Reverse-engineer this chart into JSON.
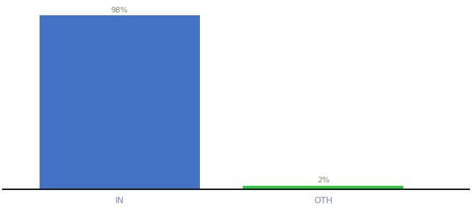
{
  "categories": [
    "IN",
    "OTH"
  ],
  "values": [
    98,
    2
  ],
  "bar_colors": [
    "#4472c4",
    "#2ecc40"
  ],
  "label_color": "#888866",
  "label_texts": [
    "98%",
    "2%"
  ],
  "background_color": "#ffffff",
  "ylim": [
    0,
    105
  ],
  "bar_width": 0.55,
  "figsize": [
    6.8,
    3.0
  ],
  "dpi": 100,
  "spine_color": "#111111",
  "tick_label_color": "#7a8ab0",
  "x_positions": [
    0.3,
    1.0
  ]
}
